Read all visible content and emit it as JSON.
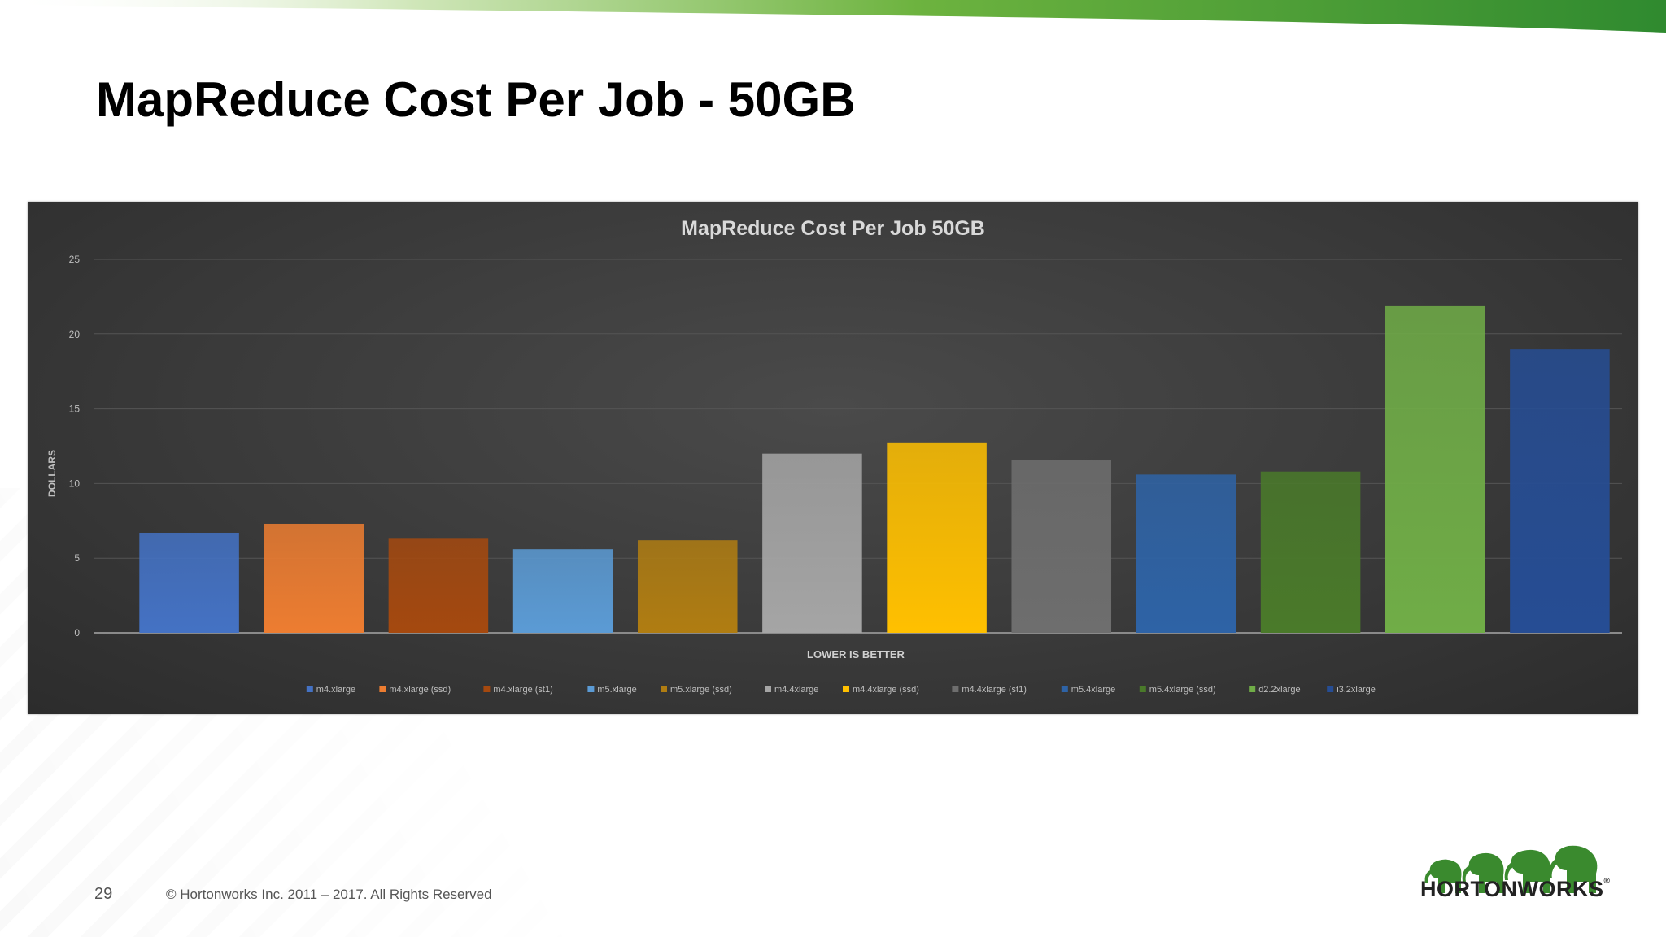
{
  "slide": {
    "title": "MapReduce Cost Per Job - 50GB",
    "page_number": "29",
    "copyright": "© Hortonworks Inc. 2011 – 2017. All Rights Reserved",
    "logo_text": "HORTONWORKS",
    "logo_registered": "®",
    "colors": {
      "accent_green": "#5aa832",
      "logo_green": "#3a8a2e"
    }
  },
  "chart_data": {
    "type": "bar",
    "title": "MapReduce Cost Per Job 50GB",
    "xlabel": "LOWER IS BETTER",
    "ylabel": "DOLLARS",
    "ylim": [
      0,
      25
    ],
    "yticks": [
      "0",
      "5",
      "10",
      "15",
      "20",
      "25"
    ],
    "ytick_values": [
      0,
      5,
      10,
      15,
      20,
      25
    ],
    "grid": true,
    "legend_position": "bottom",
    "categories": [
      "m4.xlarge",
      "m4.xlarge (ssd)",
      "m4.xlarge (st1)",
      "m5.xlarge",
      "m5.xlarge (ssd)",
      "m4.4xlarge",
      "m4.4xlarge (ssd)",
      "m4.4xlarge (st1)",
      "m5.4xlarge",
      "m5.4xlarge (ssd)",
      "d2.2xlarge",
      "i3.2xlarge"
    ],
    "values": [
      6.7,
      7.3,
      6.3,
      5.6,
      6.2,
      12.0,
      12.7,
      11.6,
      10.6,
      10.8,
      21.9,
      19.0
    ],
    "colors": [
      "#4472c4",
      "#ed7d31",
      "#a5490f",
      "#5b9bd5",
      "#b07d12",
      "#a5a5a5",
      "#ffc000",
      "#6e6e6e",
      "#2e63a6",
      "#4a7a2a",
      "#70ad47",
      "#264d94"
    ]
  }
}
